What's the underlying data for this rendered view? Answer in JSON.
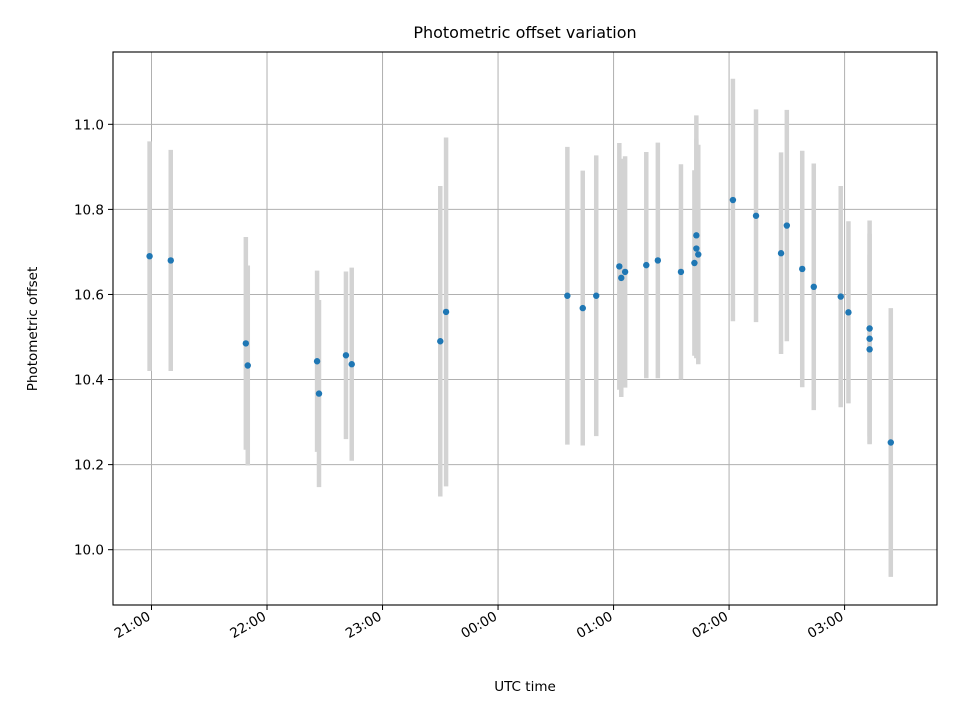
{
  "chart_data": {
    "type": "scatter",
    "title": "Photometric offset variation",
    "xlabel": "UTC time",
    "ylabel": "Photometric offset",
    "grid": true,
    "error_bars": true,
    "x_tick_labels": [
      "21:00",
      "22:00",
      "23:00",
      "00:00",
      "01:00",
      "02:00",
      "03:00"
    ],
    "y_tick_labels": [
      "10.0",
      "10.2",
      "10.4",
      "10.6",
      "10.8",
      "11.0"
    ],
    "y_ticks": [
      10.0,
      10.2,
      10.4,
      10.6,
      10.8,
      11.0
    ],
    "x_range": [
      "20:40",
      "03:48"
    ],
    "ylim": [
      9.87,
      11.17
    ],
    "series": [
      {
        "points": [
          {
            "t": "20:59",
            "y": 10.69,
            "err": 0.27
          },
          {
            "t": "21:10",
            "y": 10.68,
            "err": 0.26
          },
          {
            "t": "21:49",
            "y": 10.485,
            "err": 0.25
          },
          {
            "t": "21:50",
            "y": 10.433,
            "err": 0.235
          },
          {
            "t": "22:26",
            "y": 10.443,
            "err": 0.213
          },
          {
            "t": "22:27",
            "y": 10.367,
            "err": 0.22
          },
          {
            "t": "22:41",
            "y": 10.457,
            "err": 0.197
          },
          {
            "t": "22:44",
            "y": 10.436,
            "err": 0.227
          },
          {
            "t": "23:30",
            "y": 10.49,
            "err": 0.365
          },
          {
            "t": "23:33",
            "y": 10.559,
            "err": 0.41
          },
          {
            "t": "00:36",
            "y": 10.597,
            "err": 0.35
          },
          {
            "t": "00:44",
            "y": 10.568,
            "err": 0.323
          },
          {
            "t": "00:51",
            "y": 10.597,
            "err": 0.33
          },
          {
            "t": "01:03",
            "y": 10.666,
            "err": 0.29
          },
          {
            "t": "01:04",
            "y": 10.639,
            "err": 0.28
          },
          {
            "t": "01:06",
            "y": 10.653,
            "err": 0.272
          },
          {
            "t": "01:17",
            "y": 10.669,
            "err": 0.266
          },
          {
            "t": "01:23",
            "y": 10.68,
            "err": 0.277
          },
          {
            "t": "01:35",
            "y": 10.653,
            "err": 0.253
          },
          {
            "t": "01:42",
            "y": 10.674,
            "err": 0.218
          },
          {
            "t": "01:43",
            "y": 10.739,
            "err": 0.282
          },
          {
            "t": "01:43",
            "y": 10.708,
            "err": 0.258
          },
          {
            "t": "01:44",
            "y": 10.694,
            "err": 0.258
          },
          {
            "t": "02:02",
            "y": 10.822,
            "err": 0.285
          },
          {
            "t": "02:14",
            "y": 10.785,
            "err": 0.25
          },
          {
            "t": "02:27",
            "y": 10.697,
            "err": 0.237
          },
          {
            "t": "02:30",
            "y": 10.762,
            "err": 0.272
          },
          {
            "t": "02:38",
            "y": 10.66,
            "err": 0.278
          },
          {
            "t": "02:44",
            "y": 10.618,
            "err": 0.29
          },
          {
            "t": "02:58",
            "y": 10.595,
            "err": 0.26
          },
          {
            "t": "03:02",
            "y": 10.558,
            "err": 0.214
          },
          {
            "t": "03:13",
            "y": 10.52,
            "err": 0.254
          },
          {
            "t": "03:13",
            "y": 10.496,
            "err": 0.247
          },
          {
            "t": "03:13",
            "y": 10.471,
            "err": 0.223
          },
          {
            "t": "03:24",
            "y": 10.252,
            "err": 0.316
          }
        ]
      }
    ],
    "colors": {
      "point": "#1f77b4",
      "error_bar": "#d3d3d3",
      "grid": "#b0b0b0",
      "axes": "#000000"
    }
  }
}
